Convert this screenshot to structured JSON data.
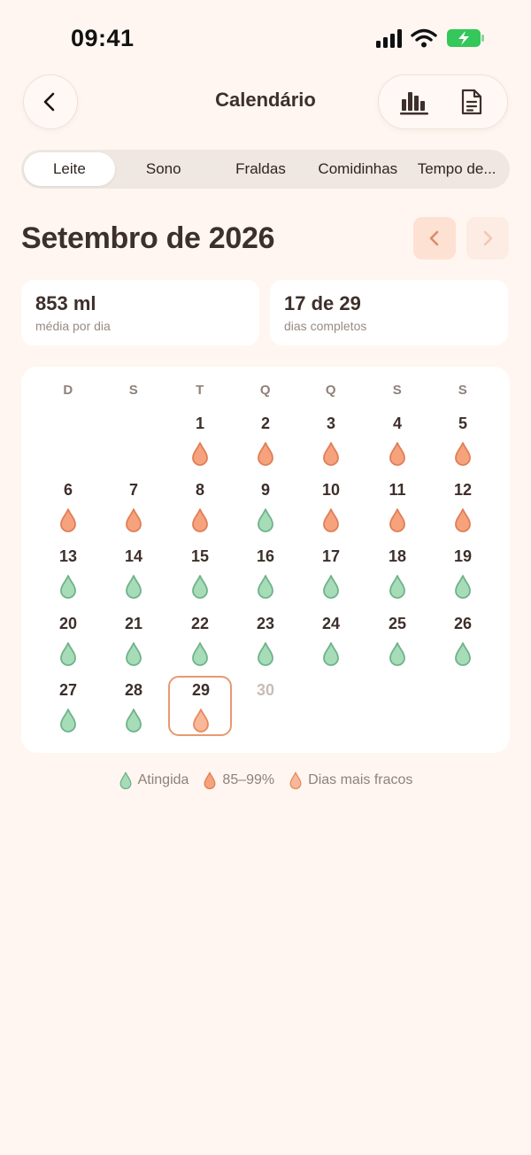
{
  "status_bar": {
    "time": "09:41"
  },
  "header": {
    "title": "Calendário",
    "back_icon": "chevron-left-icon",
    "actions": [
      {
        "name": "chart-button",
        "icon": "bar-chart-icon"
      },
      {
        "name": "report-button",
        "icon": "document-icon"
      }
    ]
  },
  "tabs": [
    {
      "label": "Leite",
      "active": true
    },
    {
      "label": "Sono",
      "active": false
    },
    {
      "label": "Fraldas",
      "active": false
    },
    {
      "label": "Comidinhas",
      "active": false
    },
    {
      "label": "Tempo de...",
      "active": false
    }
  ],
  "month": {
    "title": "Setembro de 2026"
  },
  "stats": [
    {
      "value": "853 ml",
      "label": "média por dia"
    },
    {
      "value": "17 de 29",
      "label": "dias completos"
    }
  ],
  "calendar": {
    "weekdays": [
      "D",
      "S",
      "T",
      "Q",
      "Q",
      "S",
      "S"
    ],
    "first_weekday_index": 2,
    "selected_day": 29,
    "days": [
      {
        "n": "1",
        "s": "partial"
      },
      {
        "n": "2",
        "s": "partial"
      },
      {
        "n": "3",
        "s": "partial"
      },
      {
        "n": "4",
        "s": "partial"
      },
      {
        "n": "5",
        "s": "partial"
      },
      {
        "n": "6",
        "s": "partial"
      },
      {
        "n": "7",
        "s": "partial"
      },
      {
        "n": "8",
        "s": "partial"
      },
      {
        "n": "9",
        "s": "met"
      },
      {
        "n": "10",
        "s": "partial"
      },
      {
        "n": "11",
        "s": "partial"
      },
      {
        "n": "12",
        "s": "partial"
      },
      {
        "n": "13",
        "s": "met"
      },
      {
        "n": "14",
        "s": "met"
      },
      {
        "n": "15",
        "s": "met"
      },
      {
        "n": "16",
        "s": "met"
      },
      {
        "n": "17",
        "s": "met"
      },
      {
        "n": "18",
        "s": "met"
      },
      {
        "n": "19",
        "s": "met"
      },
      {
        "n": "20",
        "s": "met"
      },
      {
        "n": "21",
        "s": "met"
      },
      {
        "n": "22",
        "s": "met"
      },
      {
        "n": "23",
        "s": "met"
      },
      {
        "n": "24",
        "s": "met"
      },
      {
        "n": "25",
        "s": "met"
      },
      {
        "n": "26",
        "s": "met"
      },
      {
        "n": "27",
        "s": "met"
      },
      {
        "n": "28",
        "s": "met"
      },
      {
        "n": "29",
        "s": "weak"
      },
      {
        "n": "30",
        "s": "future"
      }
    ]
  },
  "legend": [
    {
      "label": "Atingida",
      "status": "met"
    },
    {
      "label": "85–99%",
      "status": "partial"
    },
    {
      "label": "Dias mais fracos",
      "status": "weak"
    }
  ],
  "colors": {
    "met_fill": "#a7dcb8",
    "met_stroke": "#6fb38a",
    "partial_fill": "#f6a27d",
    "partial_stroke": "#e07f57",
    "weak_fill": "#f9b89a",
    "weak_stroke": "#e8895f",
    "accent": "#e79a71"
  }
}
